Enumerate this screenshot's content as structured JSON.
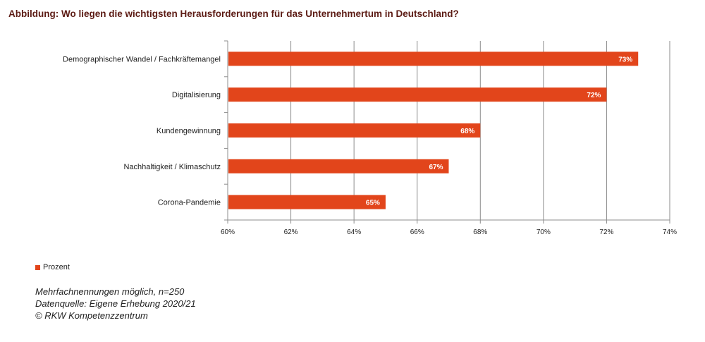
{
  "title": "Abbildung: Wo liegen die wichtigsten Herausforderungen für das Unternehmertum in Deutschland?",
  "chart_data": {
    "type": "bar",
    "orientation": "horizontal",
    "categories": [
      "Demographischer Wandel / Fachkräftemangel",
      "Digitalisierung",
      "Kundengewinnung",
      "Nachhaltigkeit / Klimaschutz",
      "Corona-Pandemie"
    ],
    "series": [
      {
        "name": "Prozent",
        "values": [
          73,
          72,
          68,
          67,
          65
        ],
        "labels": [
          "73%",
          "72%",
          "68%",
          "67%",
          "65%"
        ]
      }
    ],
    "xlim": [
      60,
      74
    ],
    "ticks": [
      60,
      62,
      64,
      66,
      68,
      70,
      72,
      74
    ],
    "tick_labels": [
      "60%",
      "62%",
      "64%",
      "66%",
      "68%",
      "70%",
      "72%",
      "74%"
    ],
    "grid": true,
    "legend_position": "bottom-left",
    "bar_color": "#e2451b"
  },
  "legend": {
    "label": "Prozent"
  },
  "notes": [
    "Mehrfachnennungen möglich, n=250",
    "Datenquelle: Eigene Erhebung 2020/21",
    "© RKW Kompetenzzentrum"
  ]
}
